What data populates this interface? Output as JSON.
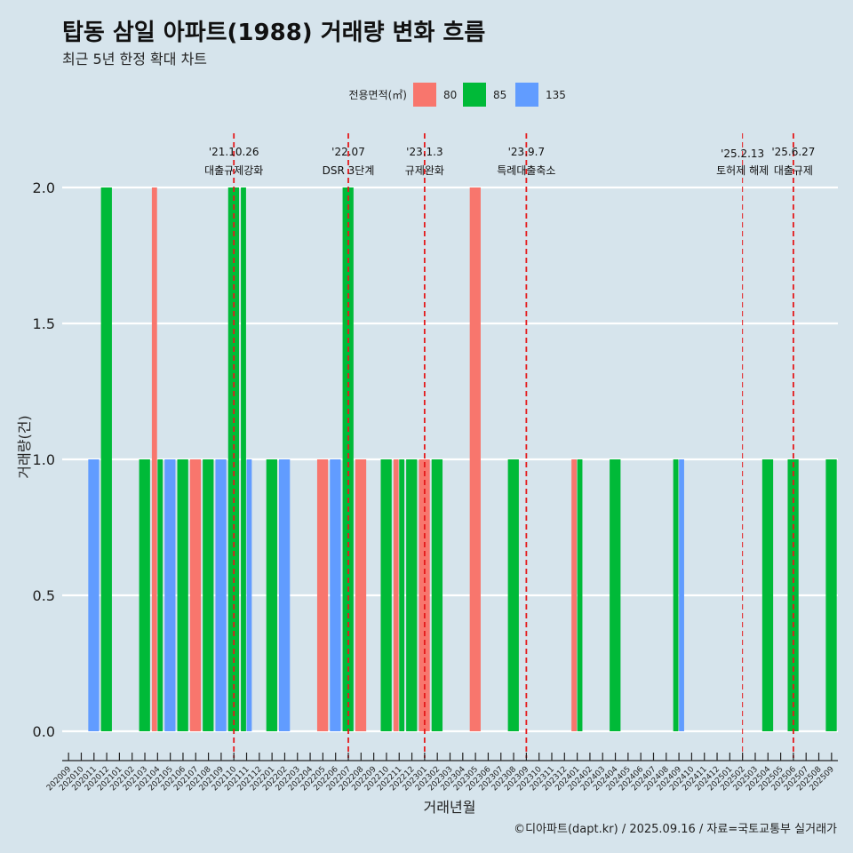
{
  "header": {
    "title": "탑동 삼일 아파트(1988) 거래량 변화 흐름",
    "subtitle": "최근 5년 한정 확대 차트"
  },
  "caption": "©디아파트(dapt.kr) / 2025.09.16 / 자료=국토교통부 실거래가",
  "colors": {
    "80": "#f8766d",
    "85": "#00ba38",
    "135": "#619cff",
    "background": "#d6e4ec",
    "vline": "#e41a1c"
  },
  "chart_data": {
    "type": "bar",
    "title": "탑동 삼일 아파트(1988) 거래량 변화 흐름",
    "xlabel": "거래년월",
    "ylabel": "거래량(건)",
    "ylim": [
      0,
      2.15
    ],
    "yticks": [
      "0.0",
      "0.5",
      "1.0",
      "1.5",
      "2.0"
    ],
    "legend_title": "전용면적(㎡)",
    "legend_position": "top",
    "categories": [
      "202009",
      "202010",
      "202011",
      "202012",
      "202101",
      "202102",
      "202103",
      "202104",
      "202105",
      "202106",
      "202107",
      "202108",
      "202109",
      "202110",
      "202111",
      "202112",
      "202201",
      "202202",
      "202203",
      "202204",
      "202205",
      "202206",
      "202207",
      "202208",
      "202209",
      "202210",
      "202211",
      "202212",
      "202301",
      "202302",
      "202303",
      "202304",
      "202305",
      "202306",
      "202307",
      "202308",
      "202309",
      "202310",
      "202311",
      "202312",
      "202401",
      "202402",
      "202403",
      "202404",
      "202405",
      "202406",
      "202407",
      "202408",
      "202409",
      "202410",
      "202411",
      "202412",
      "202501",
      "202502",
      "202503",
      "202504",
      "202505",
      "202506",
      "202507",
      "202508",
      "202509"
    ],
    "series": [
      {
        "name": "80",
        "values": [
          0,
          0,
          0,
          0,
          0,
          0,
          0,
          2,
          0,
          0,
          1,
          0,
          0,
          0,
          0,
          0,
          0,
          0,
          0,
          0,
          1,
          0,
          0,
          1,
          0,
          0,
          1,
          0,
          1,
          0,
          0,
          0,
          2,
          0,
          0,
          0,
          0,
          0,
          0,
          0,
          1,
          0,
          0,
          0,
          0,
          0,
          0,
          0,
          0,
          0,
          0,
          0,
          0,
          0,
          0,
          0,
          0,
          0,
          0,
          0,
          0
        ]
      },
      {
        "name": "85",
        "values": [
          0,
          0,
          0,
          2,
          0,
          0,
          1,
          1,
          0,
          1,
          0,
          1,
          0,
          2,
          2,
          0,
          1,
          0,
          0,
          0,
          0,
          0,
          2,
          0,
          0,
          1,
          1,
          1,
          0,
          1,
          0,
          0,
          0,
          0,
          0,
          1,
          0,
          0,
          0,
          0,
          1,
          0,
          0,
          1,
          0,
          0,
          0,
          0,
          1,
          0,
          0,
          0,
          0,
          0,
          0,
          1,
          0,
          1,
          0,
          0,
          1
        ]
      },
      {
        "name": "135",
        "values": [
          0,
          0,
          1,
          0,
          0,
          0,
          0,
          0,
          1,
          0,
          0,
          0,
          1,
          0,
          1,
          0,
          0,
          1,
          0,
          0,
          0,
          1,
          0,
          0,
          0,
          0,
          0,
          0,
          0,
          0,
          0,
          0,
          0,
          0,
          0,
          0,
          0,
          0,
          0,
          0,
          0,
          0,
          0,
          0,
          0,
          0,
          0,
          0,
          1,
          0,
          0,
          0,
          0,
          0,
          0,
          0,
          0,
          0,
          0,
          0,
          0
        ]
      }
    ],
    "annotations": [
      {
        "date": "'21.10.26",
        "text": "대출규제강화",
        "month": "202110"
      },
      {
        "date": "'22.07",
        "text": "DSR 3단계",
        "month": "202207"
      },
      {
        "date": "'23.1.3",
        "text": "규제완화",
        "month": "202301"
      },
      {
        "date": "'23.9.7",
        "text": "특례대출축소",
        "month": "202309"
      },
      {
        "date": "'25.2.13",
        "text": "토허제 해제",
        "month": "202502"
      },
      {
        "date": "'25.6.27",
        "text": "대출규제",
        "month": "202506"
      }
    ]
  }
}
